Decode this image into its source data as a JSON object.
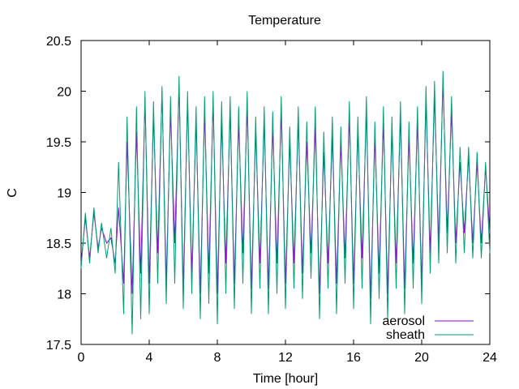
{
  "chart_data": {
    "type": "line",
    "title": "Temperature",
    "xlabel": "Time [hour]",
    "ylabel": "C",
    "xlim": [
      0,
      24
    ],
    "ylim": [
      17.5,
      20.5
    ],
    "xticks": [
      0,
      4,
      8,
      12,
      16,
      20,
      24
    ],
    "yticks": [
      17.5,
      18,
      18.5,
      19,
      19.5,
      20,
      20.5
    ],
    "xtick_labels": [
      "0",
      "4",
      "8",
      "12",
      "16",
      "20",
      "24"
    ],
    "ytick_labels": [
      "17.5",
      "18",
      "18.5",
      "19",
      "19.5",
      "20",
      "20.5"
    ],
    "grid": false,
    "legend_position": "bottom-right",
    "x": [
      0,
      0.25,
      0.5,
      0.75,
      1.0,
      1.2,
      1.5,
      1.75,
      2.0,
      2.2,
      2.5,
      2.7,
      3.0,
      3.25,
      3.5,
      3.75,
      4.0,
      4.25,
      4.5,
      4.75,
      5.0,
      5.25,
      5.5,
      5.75,
      6.0,
      6.25,
      6.5,
      6.75,
      7.0,
      7.25,
      7.5,
      7.75,
      8.0,
      8.25,
      8.5,
      8.75,
      9.0,
      9.25,
      9.5,
      9.75,
      10.0,
      10.25,
      10.5,
      10.75,
      11.0,
      11.25,
      11.5,
      11.75,
      12.0,
      12.25,
      12.5,
      12.75,
      13.0,
      13.25,
      13.5,
      13.75,
      14.0,
      14.25,
      14.5,
      14.75,
      15.0,
      15.25,
      15.5,
      15.75,
      16.0,
      16.25,
      16.5,
      16.75,
      17.0,
      17.25,
      17.5,
      17.75,
      18.0,
      18.25,
      18.5,
      18.75,
      19.0,
      19.25,
      19.5,
      19.75,
      20.0,
      20.25,
      20.5,
      20.75,
      21.0,
      21.25,
      21.5,
      21.75,
      22.0,
      22.25,
      22.5,
      22.75,
      23.0,
      23.25,
      23.5,
      23.75,
      24.0
    ],
    "series": [
      {
        "name": "aerosol",
        "color": "#9400d3",
        "values": [
          18.3,
          18.75,
          18.35,
          18.8,
          18.45,
          18.65,
          18.5,
          18.55,
          18.3,
          18.85,
          18.1,
          19.5,
          18.0,
          19.6,
          18.2,
          19.9,
          18.1,
          19.75,
          18.4,
          20.0,
          18.1,
          19.8,
          18.5,
          20.05,
          18.05,
          19.9,
          18.2,
          19.7,
          18.0,
          19.8,
          18.2,
          19.9,
          18.0,
          19.7,
          18.3,
          19.8,
          18.1,
          19.7,
          18.4,
          19.85,
          18.05,
          19.6,
          18.3,
          19.7,
          18.05,
          19.65,
          18.3,
          19.8,
          18.1,
          19.5,
          18.3,
          19.7,
          18.2,
          19.5,
          18.4,
          19.65,
          18.0,
          19.4,
          18.3,
          19.55,
          18.1,
          19.5,
          18.35,
          19.75,
          18.1,
          19.6,
          18.35,
          19.8,
          17.95,
          19.55,
          18.2,
          19.7,
          18.0,
          19.6,
          18.3,
          19.75,
          18.05,
          19.55,
          18.3,
          19.7,
          18.1,
          19.9,
          18.4,
          19.95,
          18.5,
          20.1,
          18.6,
          19.8,
          18.5,
          19.3,
          18.6,
          19.35,
          18.5,
          19.3,
          18.5,
          19.25,
          18.6
        ]
      },
      {
        "name": "sheath",
        "color": "#009e73",
        "values": [
          18.25,
          18.8,
          18.3,
          18.85,
          18.4,
          18.7,
          18.35,
          18.65,
          18.2,
          19.3,
          17.8,
          19.75,
          17.6,
          19.85,
          17.75,
          20.0,
          17.8,
          19.9,
          18.1,
          20.05,
          17.9,
          19.95,
          18.1,
          20.15,
          17.85,
          20.0,
          18.0,
          19.85,
          17.75,
          19.95,
          17.9,
          20.0,
          17.7,
          19.9,
          18.0,
          19.95,
          17.85,
          19.85,
          18.1,
          20.0,
          17.8,
          19.75,
          18.05,
          19.85,
          17.8,
          19.8,
          18.0,
          19.95,
          17.85,
          19.65,
          18.05,
          19.85,
          17.95,
          19.7,
          18.15,
          19.85,
          17.75,
          19.6,
          18.05,
          19.75,
          17.8,
          19.65,
          18.1,
          19.9,
          17.85,
          19.75,
          18.05,
          19.95,
          17.7,
          19.7,
          17.95,
          19.85,
          17.75,
          19.75,
          18.05,
          19.9,
          17.8,
          19.7,
          18.05,
          19.85,
          17.9,
          20.05,
          18.2,
          20.1,
          18.3,
          20.2,
          18.4,
          19.95,
          18.3,
          19.45,
          18.4,
          19.45,
          18.35,
          19.4,
          18.35,
          19.3,
          18.4
        ]
      }
    ]
  }
}
